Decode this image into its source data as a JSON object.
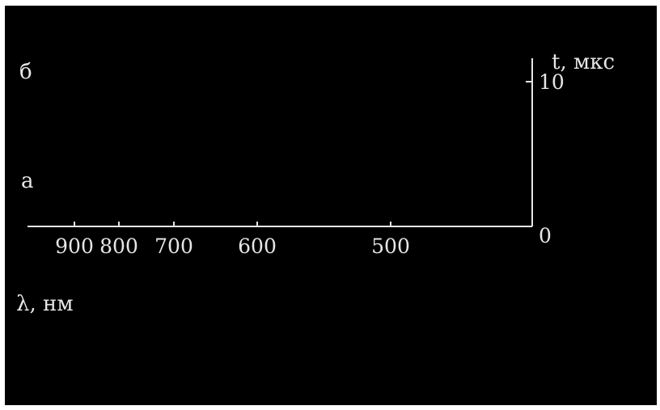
{
  "chart_data": {
    "type": "line",
    "xlabel": "λ, нм",
    "ylabel": "t, мкс",
    "x_ticks": [
      900,
      800,
      700,
      600,
      500
    ],
    "y_ticks": [
      0,
      10
    ],
    "xlim": [
      950,
      410
    ],
    "ylim": [
      0,
      10
    ],
    "x_reversed": true,
    "grid": false,
    "panel_labels": [
      "а",
      "б"
    ],
    "series": [],
    "colors": {
      "background": "#000000",
      "foreground": "#e6e6e6"
    }
  }
}
